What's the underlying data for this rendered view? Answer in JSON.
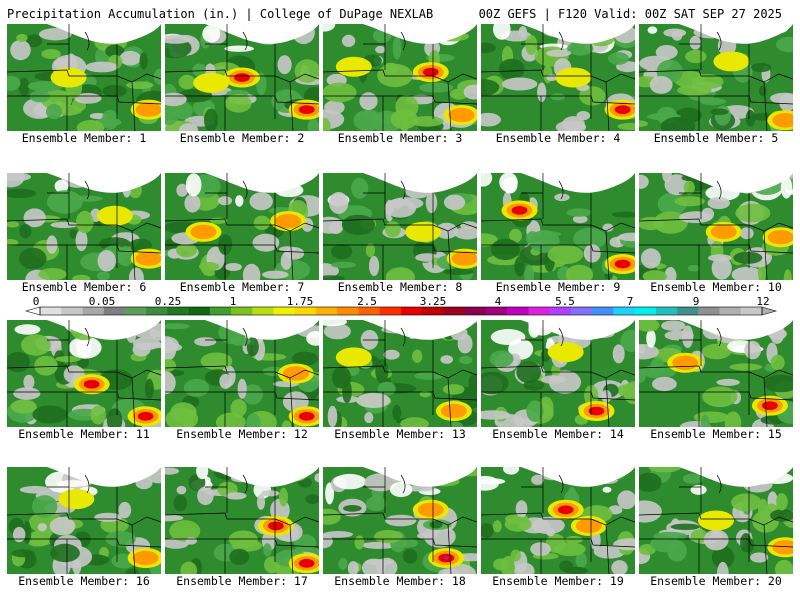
{
  "header": {
    "left": "Precipitation Accumulation (in.) | College of DuPage NEXLAB",
    "right": "00Z GEFS | F120 Valid: 00Z SAT SEP 27 2025"
  },
  "panels": [
    {
      "label": "Ensemble Member: 1"
    },
    {
      "label": "Ensemble Member: 2"
    },
    {
      "label": "Ensemble Member: 3"
    },
    {
      "label": "Ensemble Member: 4"
    },
    {
      "label": "Ensemble Member: 5"
    },
    {
      "label": "Ensemble Member: 6"
    },
    {
      "label": "Ensemble Member: 7"
    },
    {
      "label": "Ensemble Member: 8"
    },
    {
      "label": "Ensemble Member: 9"
    },
    {
      "label": "Ensemble Member: 10"
    },
    {
      "label": "Ensemble Member: 11"
    },
    {
      "label": "Ensemble Member: 12"
    },
    {
      "label": "Ensemble Member: 13"
    },
    {
      "label": "Ensemble Member: 14"
    },
    {
      "label": "Ensemble Member: 15"
    },
    {
      "label": "Ensemble Member: 16"
    },
    {
      "label": "Ensemble Member: 17"
    },
    {
      "label": "Ensemble Member: 18"
    },
    {
      "label": "Ensemble Member: 19"
    },
    {
      "label": "Ensemble Member: 20"
    }
  ],
  "colorbar": {
    "ticks": [
      "0",
      "0.05",
      "0.25",
      "1",
      "1.75",
      "2.5",
      "3.25",
      "4",
      "5.5",
      "7",
      "9",
      "12"
    ],
    "colors": [
      "#e0e0e0",
      "#c8c8c8",
      "#a8a8a8",
      "#7f7f7f",
      "#5a9e5a",
      "#3c8c3c",
      "#1f7a1f",
      "#0f6a0f",
      "#3fa02f",
      "#7ec21f",
      "#b8df10",
      "#f0f000",
      "#ffd700",
      "#ffb000",
      "#ff8c00",
      "#ff6000",
      "#ff2d00",
      "#e60000",
      "#c00000",
      "#a00020",
      "#8b0050",
      "#a0007a",
      "#c000c0",
      "#e020e0",
      "#b040ff",
      "#8070ff",
      "#4090ff",
      "#20d0ff",
      "#00f0f0",
      "#20c0c0",
      "#409090",
      "#909090",
      "#b0b0b0",
      "#c8c8c8"
    ]
  },
  "legend": {
    "gray": "#c8c8c8",
    "green": "#2e8b2e",
    "yellow": "#e8e800",
    "orange": "#ff9a00",
    "red": "#e80000",
    "magenta": "#b0207a",
    "white": "#ffffff",
    "borders": "#000000"
  }
}
